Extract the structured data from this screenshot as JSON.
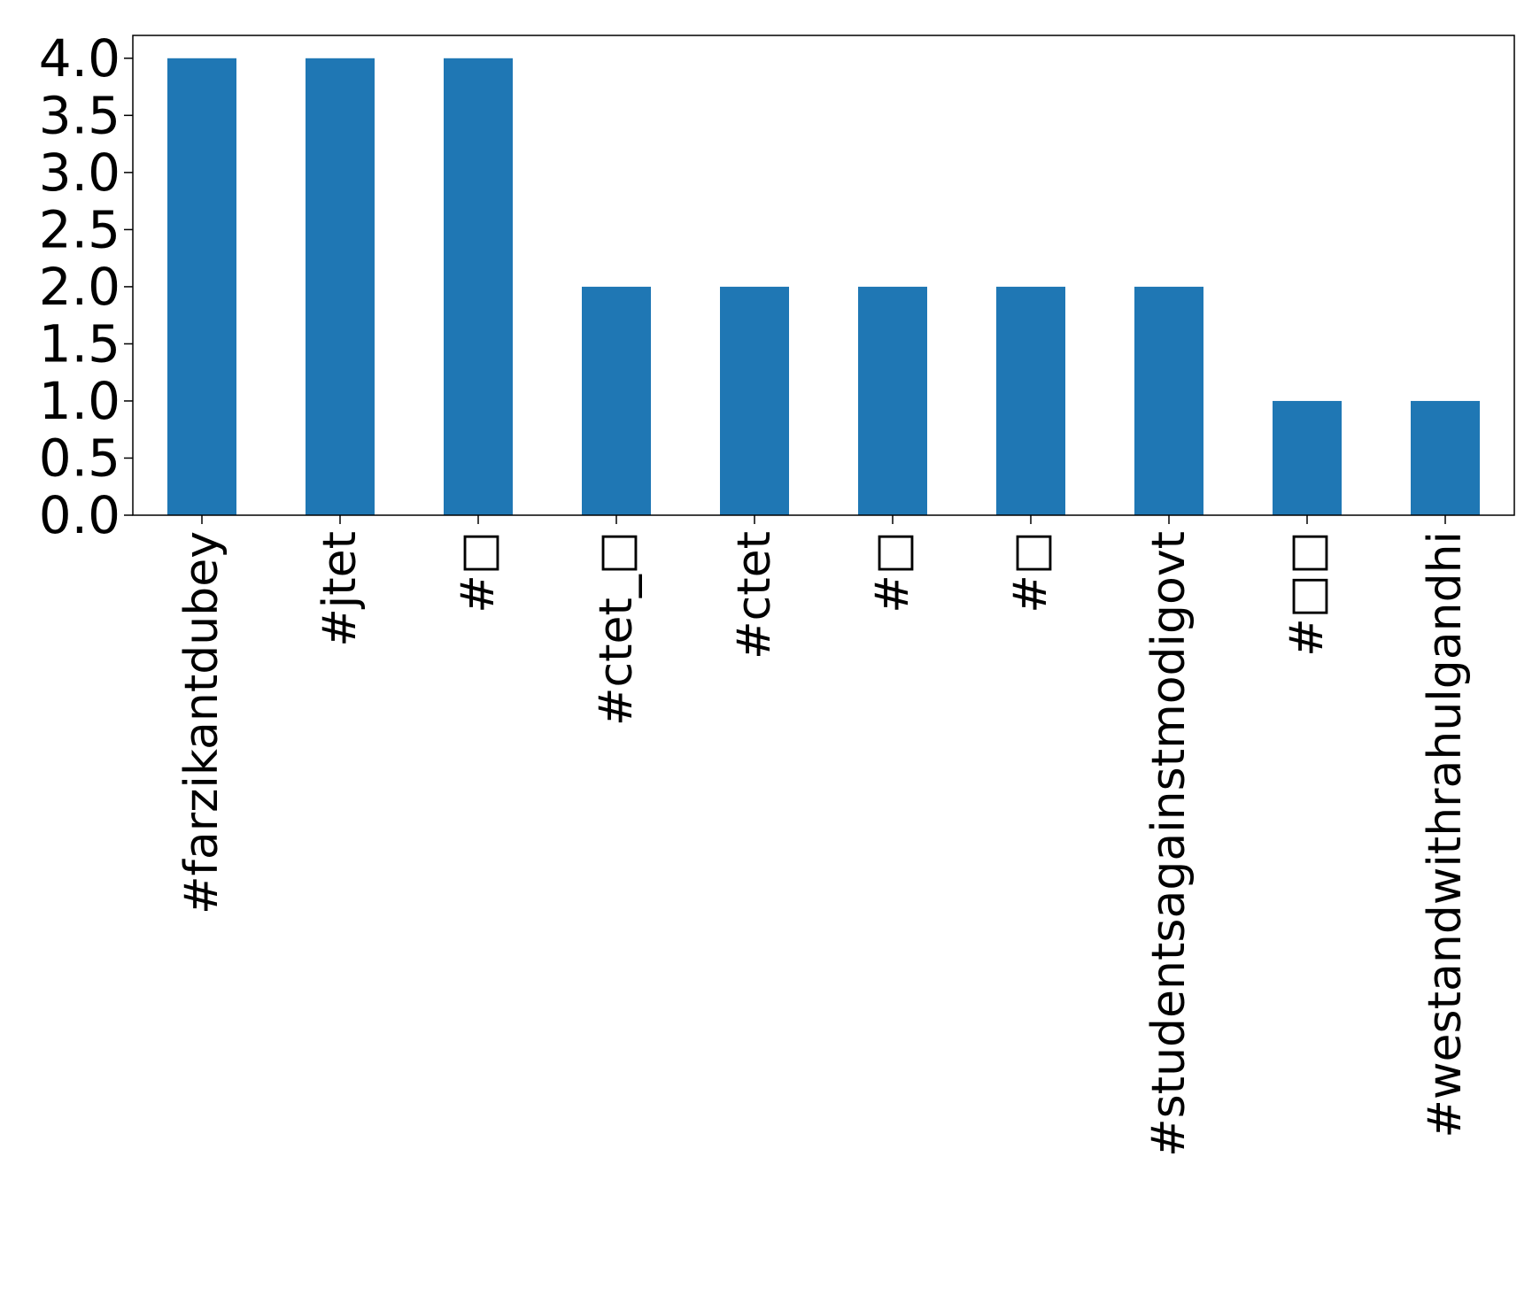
{
  "chart_data": {
    "type": "bar",
    "title": "",
    "xlabel": "",
    "ylabel": "",
    "categories": [
      "#farzikantdubey",
      "#jtet",
      "#□",
      "#ctet_□",
      "#ctet",
      "#□",
      "#□",
      "#studentsagainstmodigovt",
      "#□□",
      "#westandwithrahulgandhi"
    ],
    "values": [
      4,
      4,
      4,
      2,
      2,
      2,
      2,
      2,
      1,
      1
    ],
    "ylim": [
      0,
      4.2
    ],
    "yticks": [
      "0.0",
      "0.5",
      "1.0",
      "1.5",
      "2.0",
      "2.5",
      "3.0",
      "3.5",
      "4.0"
    ],
    "grid": false,
    "legend": "none",
    "colors": {
      "bar": "#1f77b4",
      "axes": "#000000",
      "background": "#ffffff"
    }
  }
}
